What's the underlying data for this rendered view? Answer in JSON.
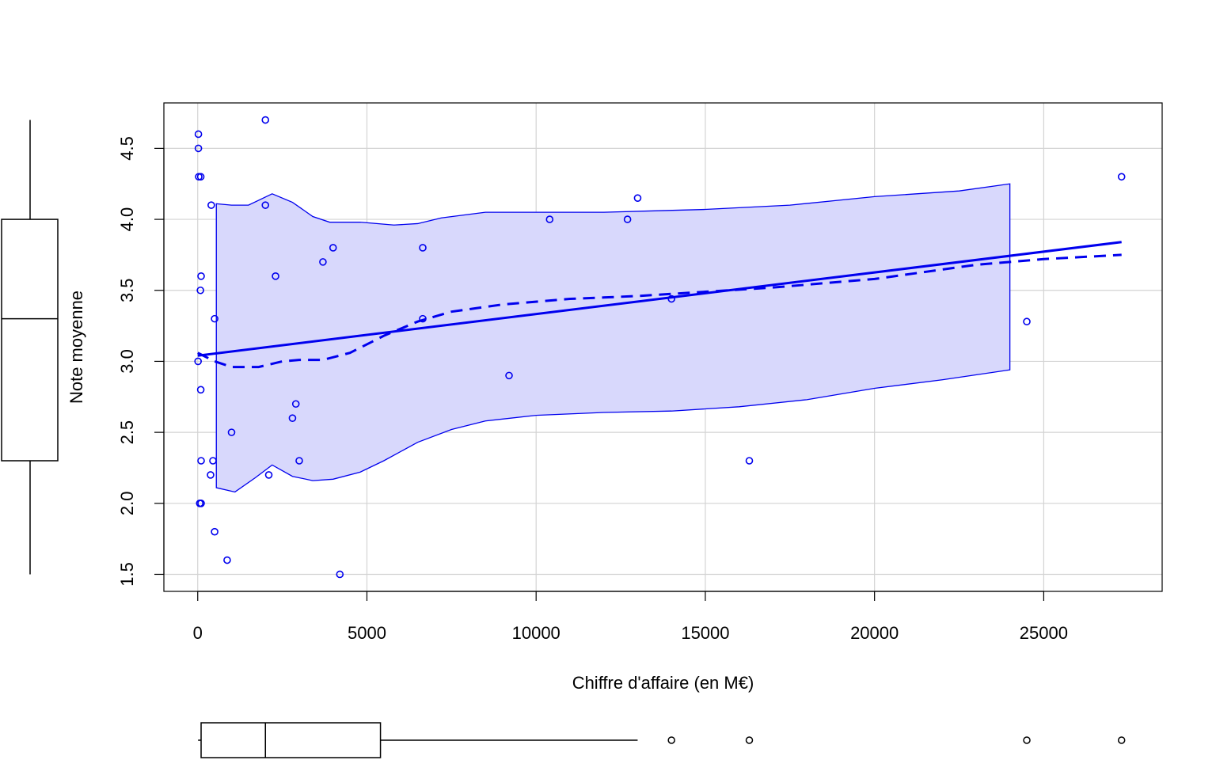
{
  "chart_data": {
    "type": "scatter",
    "xlabel": "Chiffre d'affaire (en M€)",
    "ylabel": "Note moyenne",
    "xlim": [
      -1000,
      28500
    ],
    "ylim": [
      1.38,
      4.82
    ],
    "x_ticks": [
      0,
      5000,
      10000,
      15000,
      20000,
      25000
    ],
    "x_tick_labels": [
      "0",
      "5000",
      "10000",
      "15000",
      "20000",
      "25000"
    ],
    "y_ticks": [
      1.5,
      2.0,
      2.5,
      3.0,
      3.5,
      4.0,
      4.5
    ],
    "y_tick_labels": [
      "1.5",
      "2.0",
      "2.5",
      "3.0",
      "3.5",
      "4.0",
      "4.5"
    ],
    "grid": true,
    "colors": {
      "points": "#0000ee",
      "band_fill": "#d8d8fc",
      "band_line": "#0000ee",
      "grid": "#d3d3d3"
    },
    "points": [
      {
        "x": 20,
        "y": 4.6
      },
      {
        "x": 20,
        "y": 4.5
      },
      {
        "x": 30,
        "y": 4.3
      },
      {
        "x": 90,
        "y": 4.3
      },
      {
        "x": 2000,
        "y": 4.7
      },
      {
        "x": 400,
        "y": 4.1
      },
      {
        "x": 2000,
        "y": 4.1
      },
      {
        "x": 100,
        "y": 3.6
      },
      {
        "x": 2300,
        "y": 3.6
      },
      {
        "x": 80,
        "y": 3.5
      },
      {
        "x": 500,
        "y": 3.3
      },
      {
        "x": 3700,
        "y": 3.7
      },
      {
        "x": 4000,
        "y": 3.8
      },
      {
        "x": 6650,
        "y": 3.8
      },
      {
        "x": 6650,
        "y": 3.3
      },
      {
        "x": 10400,
        "y": 4.0
      },
      {
        "x": 12700,
        "y": 4.0
      },
      {
        "x": 13000,
        "y": 4.15
      },
      {
        "x": 14000,
        "y": 3.44
      },
      {
        "x": 10,
        "y": 3.0
      },
      {
        "x": 90,
        "y": 2.8
      },
      {
        "x": 9200,
        "y": 2.9
      },
      {
        "x": 2900,
        "y": 2.7
      },
      {
        "x": 2800,
        "y": 2.6
      },
      {
        "x": 1000,
        "y": 2.5
      },
      {
        "x": 100,
        "y": 2.3
      },
      {
        "x": 450,
        "y": 2.3
      },
      {
        "x": 3000,
        "y": 2.3
      },
      {
        "x": 16300,
        "y": 2.3
      },
      {
        "x": 380,
        "y": 2.2
      },
      {
        "x": 2100,
        "y": 2.2
      },
      {
        "x": 60,
        "y": 2.0
      },
      {
        "x": 100,
        "y": 2.0
      },
      {
        "x": 500,
        "y": 1.8
      },
      {
        "x": 870,
        "y": 1.6
      },
      {
        "x": 4200,
        "y": 1.5
      },
      {
        "x": 24500,
        "y": 3.28
      },
      {
        "x": 27300,
        "y": 4.3
      }
    ],
    "regression_line": [
      [
        0,
        3.04
      ],
      [
        27300,
        3.84
      ]
    ],
    "smooth_line": [
      [
        0,
        3.06
      ],
      [
        500,
        3.0
      ],
      [
        1000,
        2.96
      ],
      [
        1800,
        2.96
      ],
      [
        2500,
        3.0
      ],
      [
        3000,
        3.01
      ],
      [
        3700,
        3.01
      ],
      [
        4500,
        3.06
      ],
      [
        5500,
        3.18
      ],
      [
        6500,
        3.28
      ],
      [
        7500,
        3.35
      ],
      [
        9000,
        3.4
      ],
      [
        11000,
        3.44
      ],
      [
        13000,
        3.46
      ],
      [
        15000,
        3.49
      ],
      [
        17000,
        3.52
      ],
      [
        20000,
        3.58
      ],
      [
        23000,
        3.68
      ],
      [
        25000,
        3.72
      ],
      [
        27300,
        3.75
      ]
    ],
    "band_upper": [
      [
        550,
        4.11
      ],
      [
        1000,
        4.1
      ],
      [
        1500,
        4.1
      ],
      [
        2200,
        4.18
      ],
      [
        2800,
        4.12
      ],
      [
        3400,
        4.02
      ],
      [
        3900,
        3.98
      ],
      [
        4800,
        3.98
      ],
      [
        5800,
        3.96
      ],
      [
        6500,
        3.97
      ],
      [
        7200,
        4.01
      ],
      [
        8500,
        4.05
      ],
      [
        10000,
        4.05
      ],
      [
        12000,
        4.05
      ],
      [
        13500,
        4.06
      ],
      [
        15000,
        4.07
      ],
      [
        17500,
        4.1
      ],
      [
        20000,
        4.16
      ],
      [
        22500,
        4.2
      ],
      [
        24000,
        4.25
      ]
    ],
    "band_lower": [
      [
        550,
        2.11
      ],
      [
        1100,
        2.08
      ],
      [
        1700,
        2.18
      ],
      [
        2200,
        2.27
      ],
      [
        2800,
        2.19
      ],
      [
        3400,
        2.16
      ],
      [
        4000,
        2.17
      ],
      [
        4800,
        2.22
      ],
      [
        5500,
        2.3
      ],
      [
        6500,
        2.43
      ],
      [
        7500,
        2.52
      ],
      [
        8500,
        2.58
      ],
      [
        10000,
        2.62
      ],
      [
        12000,
        2.64
      ],
      [
        14000,
        2.65
      ],
      [
        16000,
        2.68
      ],
      [
        18000,
        2.73
      ],
      [
        20000,
        2.81
      ],
      [
        22000,
        2.87
      ],
      [
        24000,
        2.94
      ]
    ],
    "boxplot_y": {
      "min": 1.5,
      "q1": 2.3,
      "median": 3.3,
      "q3": 4.0,
      "max": 4.7
    },
    "boxplot_x": {
      "min": 10,
      "q1": 100,
      "median": 2000,
      "q3": 5400,
      "whisker_max": 13000,
      "outliers": [
        14000,
        16300,
        24500,
        27300
      ]
    }
  }
}
